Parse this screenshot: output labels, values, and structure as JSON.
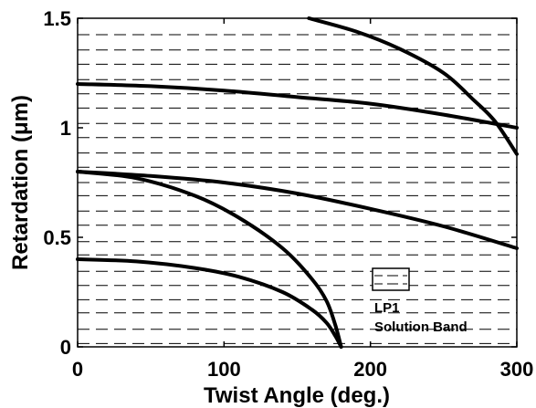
{
  "chart_data": {
    "type": "line",
    "title": "",
    "xlabel": "Twist Angle (deg.)",
    "ylabel": "Retardation (μm)",
    "xlim": [
      0,
      300
    ],
    "ylim": [
      0,
      1.5
    ],
    "x_ticks": [
      {
        "value": 0,
        "label": "0"
      },
      {
        "value": 100,
        "label": "100"
      },
      {
        "value": 200,
        "label": "200"
      },
      {
        "value": 300,
        "label": "300"
      }
    ],
    "y_ticks": [
      {
        "value": 0,
        "label": "0"
      },
      {
        "value": 0.5,
        "label": "0.5"
      },
      {
        "value": 1,
        "label": "1"
      },
      {
        "value": 1.5,
        "label": "1.5"
      }
    ],
    "grid": false,
    "legend": {
      "placement": "bottom-right",
      "line1": "LP1",
      "line2": "Solution Band"
    },
    "solution_band_levels": [
      0.015,
      0.08,
      0.155,
      0.215,
      0.28,
      0.345,
      0.42,
      0.48,
      0.555,
      0.62,
      0.69,
      0.75,
      0.82,
      0.885,
      0.955,
      1.02,
      1.09,
      1.155,
      1.22,
      1.29,
      1.355,
      1.425
    ],
    "series": [
      {
        "x": [
          0,
          40,
          80,
          110,
          140,
          160,
          170,
          176,
          180
        ],
        "y": [
          0.4,
          0.39,
          0.36,
          0.32,
          0.25,
          0.17,
          0.11,
          0.05,
          0.0
        ]
      },
      {
        "x": [
          0,
          40,
          80,
          110,
          140,
          160,
          170,
          176,
          180
        ],
        "y": [
          0.8,
          0.77,
          0.69,
          0.59,
          0.45,
          0.31,
          0.21,
          0.1,
          0.0
        ]
      },
      {
        "x": [
          0,
          50,
          100,
          150,
          200,
          250,
          300
        ],
        "y": [
          0.8,
          0.78,
          0.75,
          0.7,
          0.63,
          0.55,
          0.45
        ]
      },
      {
        "x": [
          0,
          50,
          100,
          150,
          200,
          250,
          300
        ],
        "y": [
          1.2,
          1.19,
          1.17,
          1.14,
          1.11,
          1.06,
          1.0
        ]
      },
      {
        "x": [
          158,
          190,
          220,
          250,
          270,
          285,
          300
        ],
        "y": [
          1.5,
          1.44,
          1.36,
          1.25,
          1.13,
          1.03,
          0.88
        ]
      }
    ]
  }
}
